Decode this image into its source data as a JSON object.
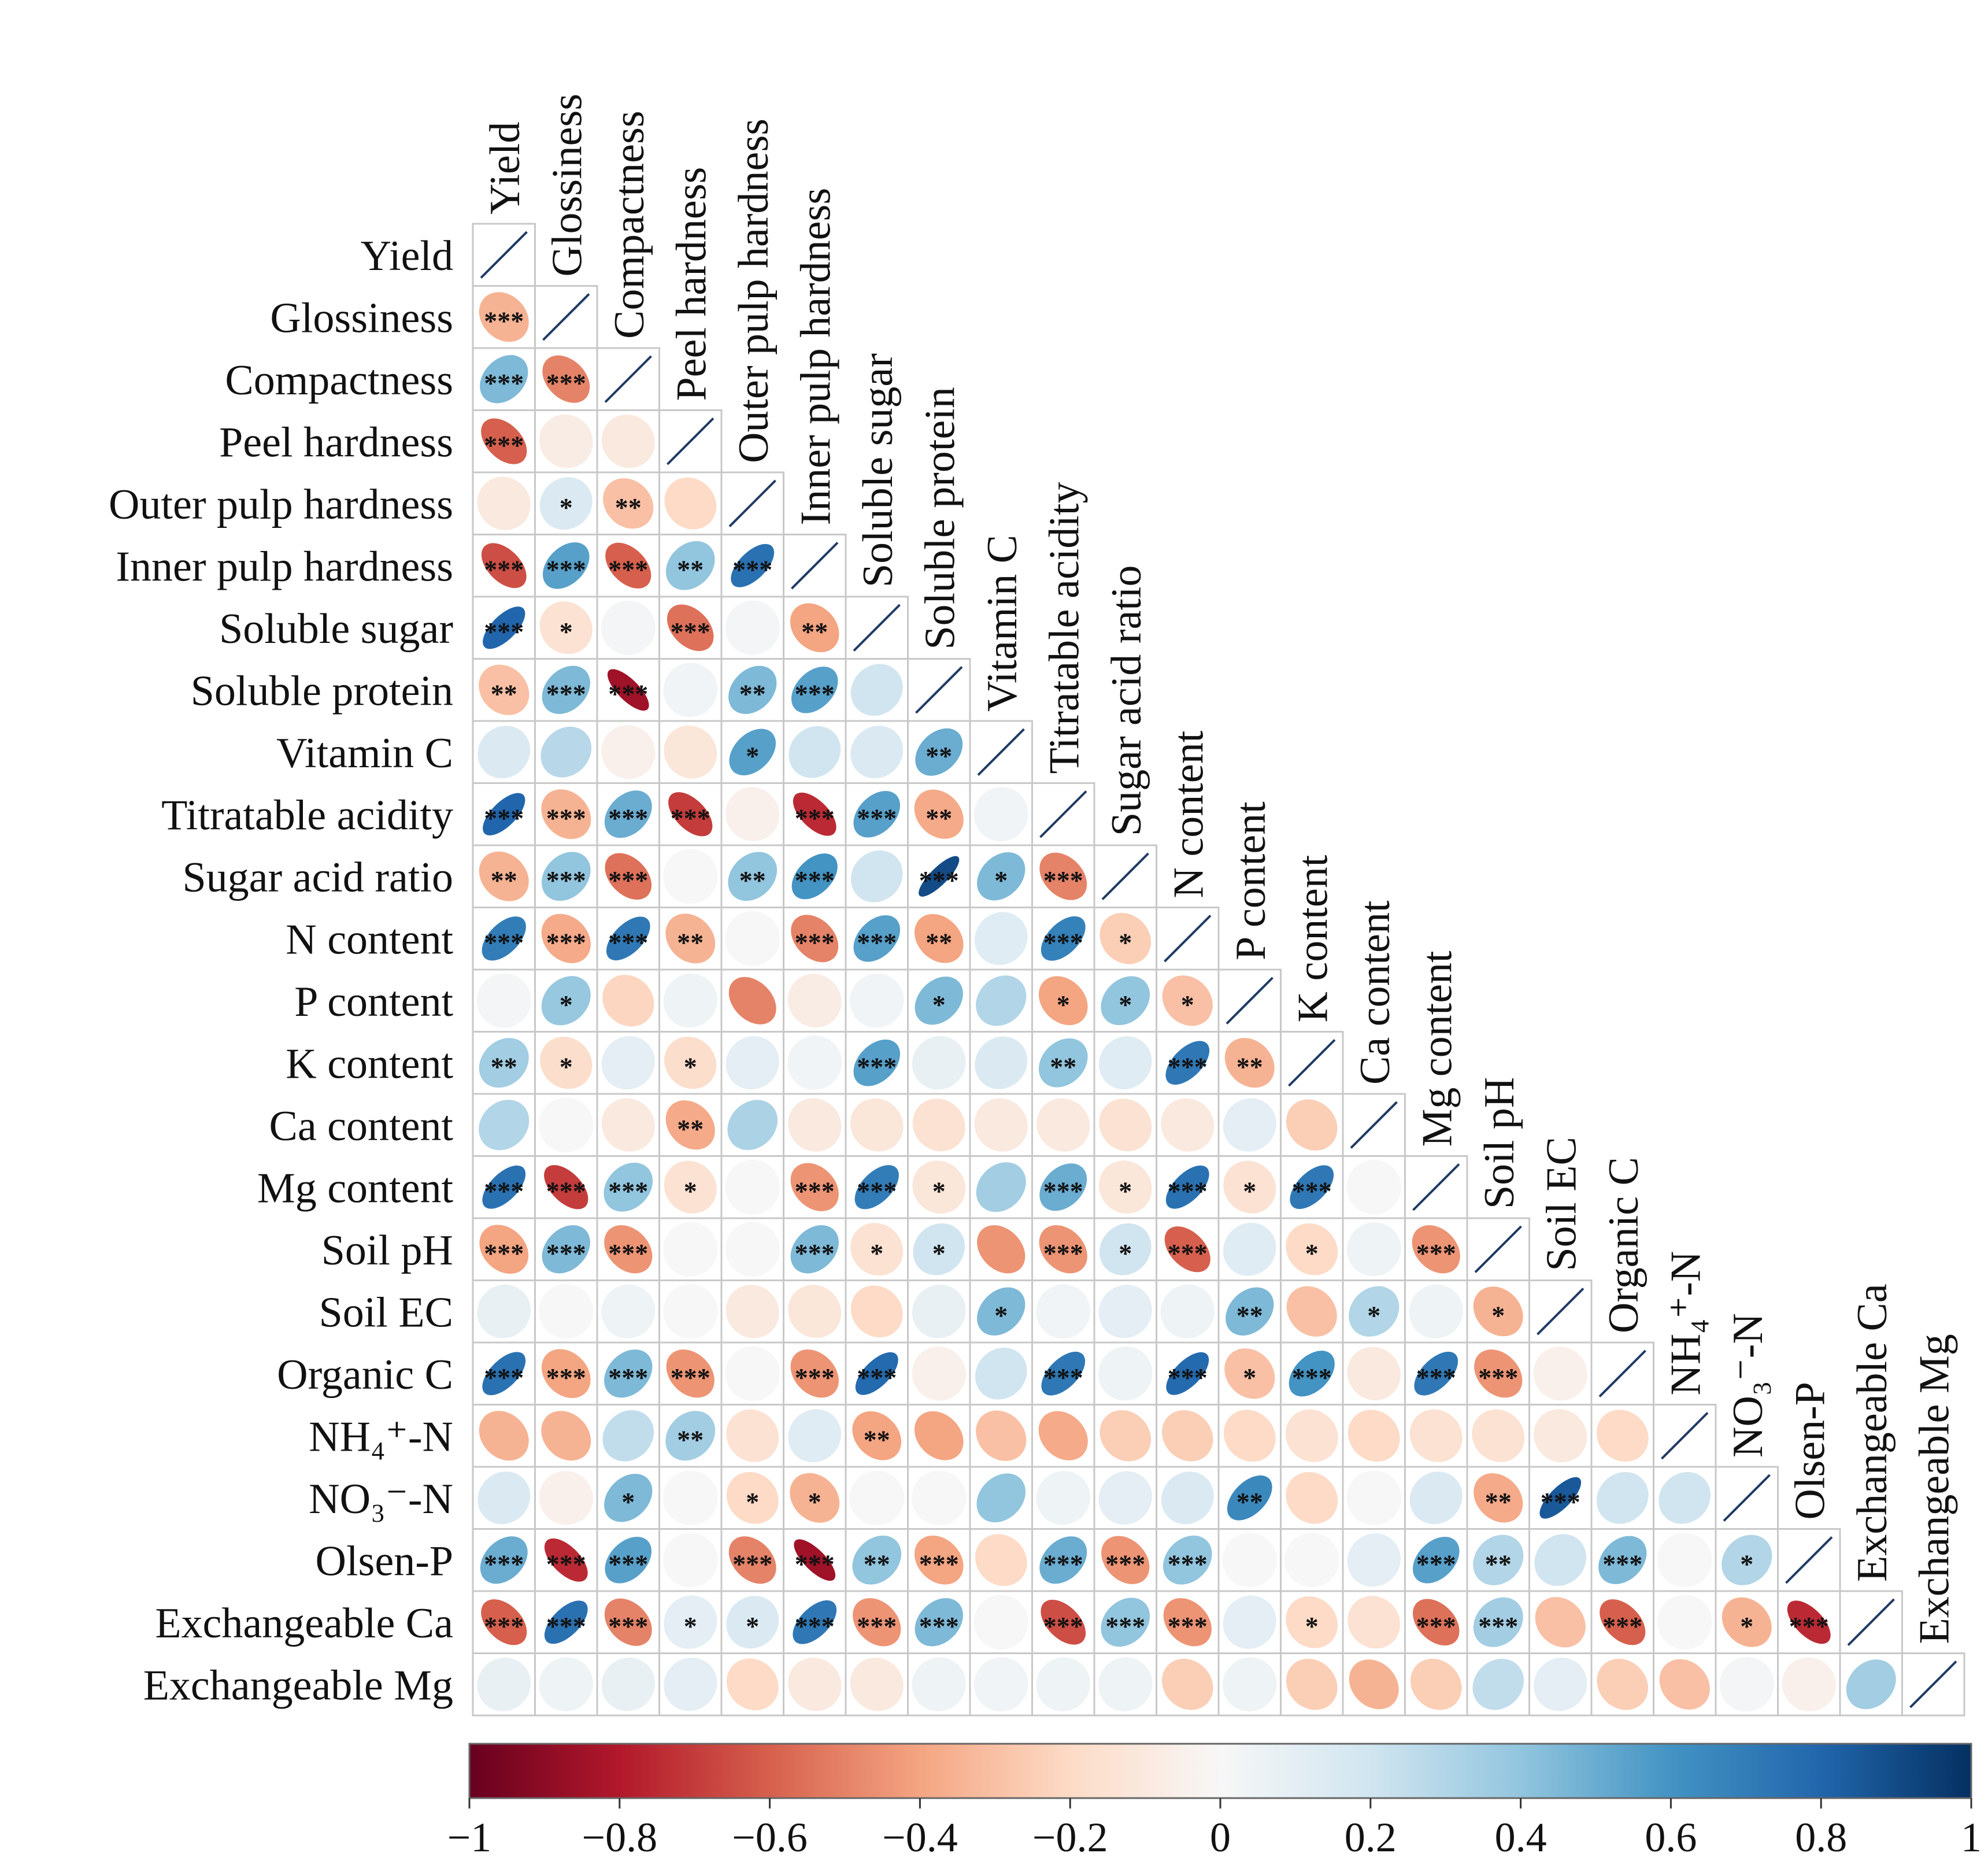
{
  "chart_data": {
    "type": "heatmap",
    "title": "",
    "style": "lower-triangle correlation matrix with ellipse glyphs and significance stars",
    "variables": [
      "Yield",
      "Glossiness",
      "Compactness",
      "Peel hardness",
      "Outer pulp hardness",
      "Inner pulp hardness",
      "Soluble sugar",
      "Soluble protein",
      "Vitamin C",
      "Titratable acidity",
      "Sugar acid ratio",
      "N content",
      "P content",
      "K content",
      "Ca content",
      "Mg content",
      "Soil pH",
      "Soil EC",
      "Organic C",
      "NH₄⁺-N",
      "NO₃⁻-N",
      "Olsen-P",
      "Exchangeable Ca",
      "Exchangeable Mg"
    ],
    "value_range": [
      -1,
      1
    ],
    "colorbar": {
      "ticks": [
        -1,
        -0.8,
        -0.6,
        -0.4,
        -0.2,
        0,
        0.2,
        0.4,
        0.6,
        0.8,
        1
      ],
      "tick_labels": [
        "−1",
        "−0.8",
        "−0.6",
        "−0.4",
        "−0.2",
        "0",
        "0.2",
        "0.4",
        "0.6",
        "0.8",
        "1"
      ],
      "colors": [
        "#67001f",
        "#b2182b",
        "#d6604d",
        "#f4a582",
        "#fddbc7",
        "#f7f7f7",
        "#d1e5f0",
        "#92c5de",
        "#4393c3",
        "#2166ac",
        "#053061"
      ]
    },
    "rows": [
      {
        "r": [],
        "sig": []
      },
      {
        "r": [
          -0.35
        ],
        "sig": [
          "***"
        ]
      },
      {
        "r": [
          0.45,
          -0.5
        ],
        "sig": [
          "***",
          "***"
        ]
      },
      {
        "r": [
          -0.6,
          -0.08,
          -0.1
        ],
        "sig": [
          "***",
          "",
          ""
        ]
      },
      {
        "r": [
          -0.1,
          0.15,
          -0.3,
          -0.2
        ],
        "sig": [
          "",
          "*",
          "**",
          ""
        ]
      },
      {
        "r": [
          -0.65,
          0.55,
          -0.6,
          0.4,
          0.75
        ],
        "sig": [
          "***",
          "***",
          "***",
          "**",
          "***"
        ]
      },
      {
        "r": [
          0.8,
          -0.15,
          0.02,
          -0.55,
          0.02,
          -0.4
        ],
        "sig": [
          "***",
          "*",
          "",
          "***",
          "",
          "**"
        ]
      },
      {
        "r": [
          -0.3,
          0.45,
          -0.85,
          0.03,
          0.45,
          0.55,
          0.2
        ],
        "sig": [
          "**",
          "***",
          "***",
          "",
          "**",
          "***",
          ""
        ]
      },
      {
        "r": [
          0.15,
          0.28,
          -0.05,
          -0.12,
          0.55,
          0.2,
          0.15,
          0.5
        ],
        "sig": [
          "",
          "",
          "",
          "",
          "*",
          "",
          "",
          "**"
        ]
      },
      {
        "r": [
          0.8,
          -0.35,
          0.5,
          -0.7,
          -0.05,
          -0.75,
          0.55,
          -0.38,
          0.03
        ],
        "sig": [
          "***",
          "***",
          "***",
          "***",
          "",
          "***",
          "***",
          "**",
          ""
        ]
      },
      {
        "r": [
          -0.35,
          0.4,
          -0.55,
          0.0,
          0.4,
          0.6,
          0.2,
          0.9,
          0.45,
          -0.5
        ],
        "sig": [
          "**",
          "***",
          "***",
          "",
          "**",
          "***",
          "",
          "***",
          "*",
          "***"
        ]
      },
      {
        "r": [
          0.7,
          -0.38,
          0.72,
          -0.35,
          0.0,
          -0.5,
          0.55,
          -0.4,
          0.12,
          0.68,
          -0.25
        ],
        "sig": [
          "***",
          "***",
          "***",
          "**",
          "",
          "***",
          "***",
          "**",
          "",
          "***",
          "*"
        ]
      },
      {
        "r": [
          0.02,
          0.38,
          -0.22,
          0.05,
          -0.5,
          -0.08,
          0.03,
          0.45,
          0.3,
          -0.4,
          0.4,
          -0.3
        ],
        "sig": [
          "",
          "*",
          "",
          "",
          "",
          "",
          "",
          "*",
          "",
          "*",
          "*",
          "*"
        ]
      },
      {
        "r": [
          0.35,
          -0.18,
          0.1,
          -0.18,
          0.1,
          0.03,
          0.55,
          0.08,
          0.15,
          0.4,
          0.12,
          0.72,
          -0.35
        ],
        "sig": [
          "**",
          "*",
          "",
          "*",
          "",
          "",
          "***",
          "",
          "",
          "**",
          "",
          "***",
          "**"
        ]
      },
      {
        "r": [
          0.3,
          0.0,
          -0.1,
          -0.38,
          0.32,
          -0.1,
          -0.12,
          -0.15,
          -0.1,
          -0.1,
          -0.15,
          -0.1,
          0.1,
          -0.25
        ],
        "sig": [
          "",
          "",
          "",
          "**",
          "",
          "",
          "",
          "",
          "",
          "",
          "",
          "",
          "",
          ""
        ]
      },
      {
        "r": [
          0.75,
          -0.7,
          0.4,
          -0.15,
          0.0,
          -0.45,
          0.7,
          -0.12,
          0.35,
          0.5,
          -0.12,
          0.75,
          -0.15,
          0.72,
          0.0
        ],
        "sig": [
          "***",
          "***",
          "***",
          "*",
          "",
          "***",
          "***",
          "*",
          "",
          "***",
          "*",
          "***",
          "*",
          "***",
          ""
        ]
      },
      {
        "r": [
          -0.4,
          0.45,
          -0.45,
          0.0,
          0.0,
          0.45,
          -0.15,
          0.2,
          -0.45,
          -0.45,
          0.2,
          -0.6,
          0.12,
          -0.2,
          0.05,
          -0.45
        ],
        "sig": [
          "***",
          "***",
          "***",
          "",
          "",
          "***",
          "*",
          "*",
          "",
          "***",
          "*",
          "***",
          "",
          "*",
          "",
          "***"
        ]
      },
      {
        "r": [
          0.08,
          0.0,
          0.05,
          0.0,
          -0.1,
          -0.12,
          -0.2,
          0.08,
          0.45,
          0.03,
          0.1,
          0.05,
          0.45,
          -0.3,
          0.3,
          0.05,
          -0.35
        ],
        "sig": [
          "",
          "",
          "",
          "",
          "",
          "",
          "",
          "",
          "*",
          "",
          "",
          "",
          "**",
          "",
          "*",
          "",
          "*"
        ]
      },
      {
        "r": [
          0.75,
          -0.4,
          0.45,
          -0.45,
          0.0,
          -0.45,
          0.78,
          -0.05,
          0.2,
          0.72,
          0.05,
          0.78,
          -0.3,
          0.6,
          -0.1,
          0.72,
          -0.45,
          -0.05
        ],
        "sig": [
          "***",
          "***",
          "***",
          "***",
          "",
          "***",
          "***",
          "",
          "",
          "***",
          "",
          "***",
          "*",
          "***",
          "",
          "***",
          "***",
          ""
        ]
      },
      {
        "r": [
          -0.35,
          -0.35,
          0.25,
          0.35,
          -0.15,
          0.12,
          -0.4,
          -0.4,
          -0.3,
          -0.38,
          -0.25,
          -0.25,
          -0.2,
          -0.15,
          -0.2,
          -0.15,
          -0.15,
          -0.1,
          -0.2
        ],
        "sig": [
          "",
          "",
          "",
          "**",
          "",
          "",
          "**",
          "",
          "",
          "",
          "",
          "",
          "",
          "",
          "",
          "",
          "",
          "",
          ""
        ]
      },
      {
        "r": [
          0.15,
          -0.05,
          0.45,
          0.0,
          -0.2,
          -0.35,
          0.0,
          0.0,
          0.4,
          0.05,
          0.1,
          0.15,
          0.65,
          -0.2,
          0.0,
          0.15,
          -0.38,
          0.85,
          0.2,
          0.2
        ],
        "sig": [
          "",
          "",
          "*",
          "",
          "*",
          "*",
          "",
          "",
          "",
          "",
          "",
          "",
          "**",
          "",
          "",
          "",
          "**",
          "***",
          "",
          ""
        ]
      },
      {
        "r": [
          0.5,
          -0.75,
          0.55,
          0.0,
          -0.5,
          -0.85,
          0.4,
          -0.4,
          -0.2,
          0.5,
          -0.45,
          0.4,
          0.0,
          0.0,
          0.1,
          0.55,
          0.3,
          0.2,
          0.45,
          0.0,
          0.3
        ],
        "sig": [
          "***",
          "***",
          "***",
          "",
          "***",
          "***",
          "**",
          "***",
          "",
          "***",
          "***",
          "***",
          "",
          "",
          "",
          "***",
          "**",
          "",
          "***",
          "",
          "*"
        ]
      },
      {
        "r": [
          -0.6,
          0.75,
          -0.5,
          0.1,
          0.15,
          0.72,
          -0.45,
          0.45,
          0.0,
          -0.65,
          0.4,
          -0.45,
          0.1,
          -0.2,
          -0.15,
          -0.55,
          0.35,
          -0.3,
          -0.6,
          0.0,
          -0.35,
          -0.75
        ],
        "sig": [
          "***",
          "***",
          "***",
          "*",
          "*",
          "***",
          "***",
          "***",
          "",
          "***",
          "***",
          "***",
          "",
          "*",
          "",
          "***",
          "***",
          "",
          "***",
          "",
          "*",
          "***"
        ]
      },
      {
        "r": [
          0.08,
          0.05,
          0.08,
          0.1,
          -0.2,
          -0.1,
          -0.1,
          0.05,
          0.03,
          0.05,
          0.05,
          -0.25,
          0.05,
          -0.25,
          -0.35,
          -0.25,
          0.25,
          0.1,
          -0.25,
          -0.3,
          0.02,
          -0.05,
          0.35
        ],
        "sig": [
          "",
          "",
          "",
          "",
          "",
          "",
          "",
          "",
          "",
          "",
          "",
          "",
          "",
          "",
          "",
          "",
          "",
          "",
          "",
          "",
          "",
          "",
          ""
        ]
      }
    ]
  }
}
